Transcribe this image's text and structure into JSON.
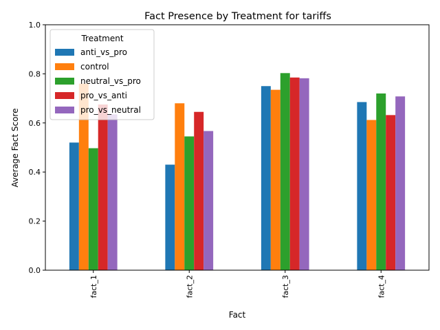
{
  "chart_data": {
    "type": "bar",
    "title": "Fact Presence by Treatment for tariffs",
    "xlabel": "Fact",
    "ylabel": "Average Fact Score",
    "ylim": [
      0,
      1.0
    ],
    "yticks": [
      0.0,
      0.2,
      0.4,
      0.6,
      0.8,
      1.0
    ],
    "ytick_labels": [
      "0.0",
      "0.2",
      "0.4",
      "0.6",
      "0.8",
      "1.0"
    ],
    "grid": false,
    "categories": [
      "fact_1",
      "fact_2",
      "fact_3",
      "fact_4"
    ],
    "legend": {
      "title": "Treatment",
      "placement": "top-left"
    },
    "series": [
      {
        "name": "anti_vs_pro",
        "color": "#1f77b4",
        "values": [
          0.52,
          0.43,
          0.75,
          0.685
        ]
      },
      {
        "name": "control",
        "color": "#ff7f0e",
        "values": [
          0.76,
          0.68,
          0.735,
          0.612
        ]
      },
      {
        "name": "neutral_vs_pro",
        "color": "#2ca02c",
        "values": [
          0.497,
          0.545,
          0.803,
          0.72
        ]
      },
      {
        "name": "pro_vs_anti",
        "color": "#d62728",
        "values": [
          0.675,
          0.645,
          0.785,
          0.632
        ]
      },
      {
        "name": "pro_vs_neutral",
        "color": "#9467bd",
        "values": [
          0.635,
          0.567,
          0.782,
          0.708
        ]
      }
    ]
  }
}
